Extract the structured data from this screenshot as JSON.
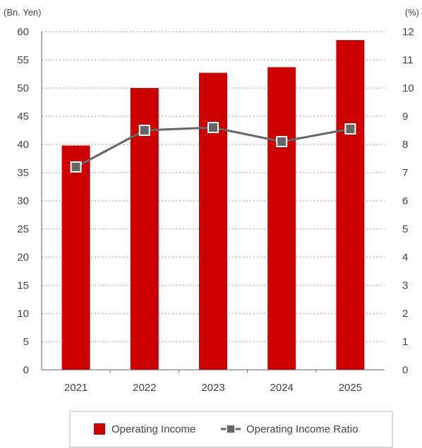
{
  "chart_data": {
    "type": "bar",
    "title": "",
    "left_axis_unit": "(Bn. Yen)",
    "right_axis_unit": "(%)",
    "categories": [
      "2021",
      "2022",
      "2023",
      "2024",
      "2025"
    ],
    "series": [
      {
        "name": "Operating Income",
        "type": "bar",
        "axis": "left",
        "color": "#cc0000",
        "values": [
          39.8,
          50.0,
          52.7,
          53.7,
          58.5
        ]
      },
      {
        "name": "Operating Income Ratio",
        "type": "line",
        "axis": "right",
        "color": "#666666",
        "values": [
          7.2,
          8.5,
          8.6,
          8.1,
          8.55
        ]
      }
    ],
    "y_left": {
      "min": 0,
      "max": 60,
      "ticks": [
        "0",
        "5",
        "10",
        "15",
        "20",
        "25",
        "30",
        "35",
        "40",
        "45",
        "50",
        "55",
        "60"
      ]
    },
    "y_right": {
      "min": 0,
      "max": 12,
      "ticks": [
        "0",
        "1",
        "2",
        "3",
        "4",
        "5",
        "6",
        "7",
        "8",
        "9",
        "10",
        "11",
        "12"
      ]
    },
    "grid": true,
    "legend_position": "bottom"
  }
}
